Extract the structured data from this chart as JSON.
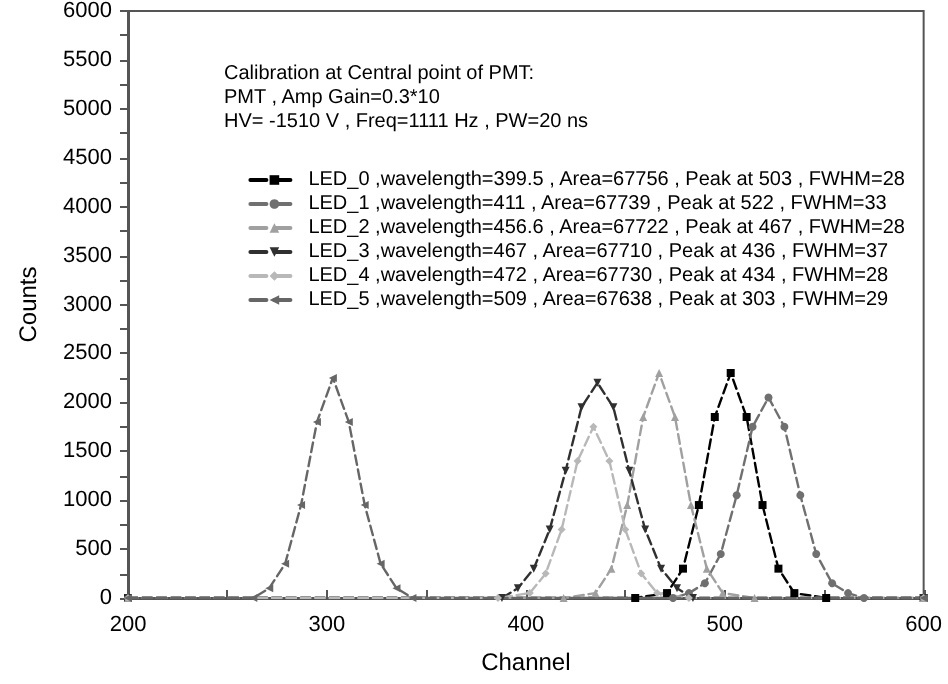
{
  "chart_data": {
    "type": "line",
    "xlabel": "Channel",
    "ylabel": "Counts",
    "annotations": [
      "Calibration at Central point of PMT:",
      "PMT , Amp Gain=0.3*10",
      "HV= -1510 V , Freq=1111 Hz , PW=20 ns"
    ],
    "xlim": [
      200,
      600
    ],
    "xticks": [
      200,
      300,
      400,
      500,
      600
    ],
    "ylim": [
      0,
      6000
    ],
    "yticks": [
      0,
      500,
      1000,
      1500,
      2000,
      2500,
      3000,
      3500,
      4000,
      4500,
      5000,
      5500,
      6000
    ],
    "grid": false,
    "legend": "top right",
    "line_style": "dashed",
    "series": [
      {
        "name": "LED_0 ,wavelength=399.5 , Area=67756 , Peak at 503 , FWHM=28",
        "color": "#000000",
        "marker": "square",
        "x": [
          200,
          455,
          471,
          479,
          487,
          495,
          503,
          511,
          519,
          527,
          535,
          551,
          600
        ],
        "values": [
          0,
          0,
          50,
          300,
          950,
          1850,
          2300,
          1850,
          950,
          300,
          50,
          0,
          0
        ]
      },
      {
        "name": "LED_1 ,wavelength=411 , Area=67739 , Peak at 522 , FWHM=33",
        "color": "#707070",
        "marker": "circle",
        "x": [
          200,
          474,
          482,
          490,
          498,
          506,
          514,
          522,
          530,
          538,
          546,
          554,
          562,
          570,
          600
        ],
        "values": [
          0,
          0,
          50,
          150,
          450,
          1050,
          1750,
          2050,
          1750,
          1050,
          450,
          150,
          50,
          0,
          0
        ]
      },
      {
        "name": "LED_2 ,wavelength=456.6 , Area=67722 , Peak at 467 , FWHM=28",
        "color": "#a0a0a0",
        "marker": "triangle",
        "x": [
          200,
          419,
          435,
          443,
          451,
          459,
          467,
          475,
          483,
          491,
          499,
          515,
          600
        ],
        "values": [
          0,
          0,
          50,
          300,
          950,
          1850,
          2300,
          1850,
          950,
          300,
          50,
          0,
          0
        ]
      },
      {
        "name": "LED_3 ,wavelength=467 , Area=67710 , Peak at 436 , FWHM=37",
        "color": "#303030",
        "marker": "triangle-down",
        "x": [
          200,
          388,
          396,
          404,
          412,
          420,
          428,
          436,
          444,
          452,
          460,
          468,
          476,
          484,
          600
        ],
        "values": [
          0,
          0,
          100,
          300,
          700,
          1300,
          1950,
          2200,
          1950,
          1300,
          700,
          300,
          100,
          0,
          0
        ]
      },
      {
        "name": "LED_4 ,wavelength=472 , Area=67730 , Peak at 434 , FWHM=28",
        "color": "#b8b8b8",
        "marker": "diamond",
        "x": [
          200,
          386,
          402,
          410,
          418,
          426,
          434,
          442,
          450,
          458,
          466,
          482,
          600
        ],
        "values": [
          0,
          0,
          50,
          250,
          700,
          1400,
          1750,
          1400,
          700,
          250,
          50,
          0,
          0
        ]
      },
      {
        "name": "LED_5 ,wavelength=509 , Area=67638 , Peak at 303 , FWHM=29",
        "color": "#666666",
        "marker": "triangle-left",
        "x": [
          200,
          263,
          271,
          279,
          287,
          295,
          303,
          311,
          319,
          327,
          335,
          343,
          600
        ],
        "values": [
          0,
          0,
          100,
          350,
          950,
          1800,
          2250,
          1800,
          950,
          350,
          100,
          0,
          0
        ]
      }
    ]
  }
}
